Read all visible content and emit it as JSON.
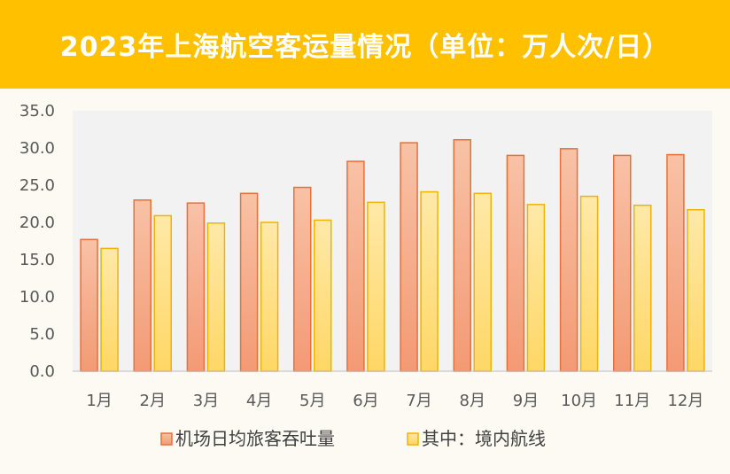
{
  "chart_data": {
    "type": "bar",
    "title": "2023年上海航空客运量情况（单位：万人次/日）",
    "categories": [
      "1月",
      "2月",
      "3月",
      "4月",
      "5月",
      "6月",
      "7月",
      "8月",
      "9月",
      "10月",
      "11月",
      "12月"
    ],
    "series": [
      {
        "name": "机场日均旅客吞吐量",
        "values": [
          17.7,
          23.0,
          22.6,
          23.9,
          24.7,
          28.2,
          30.7,
          31.1,
          29.0,
          29.9,
          29.0,
          29.1
        ],
        "color": "#f4a582",
        "border": "#e8703a"
      },
      {
        "name": "其中：境内航线",
        "values": [
          16.5,
          20.9,
          19.9,
          20.0,
          20.3,
          22.7,
          24.1,
          23.9,
          22.4,
          23.5,
          22.3,
          21.7
        ],
        "color": "#ffe08a",
        "border": "#f0b400"
      }
    ],
    "ylim": [
      0,
      35
    ],
    "yticks": [
      "0.0",
      "5.0",
      "10.0",
      "15.0",
      "20.0",
      "25.0",
      "30.0",
      "35.0"
    ],
    "grid": false,
    "legend_position": "bottom"
  }
}
